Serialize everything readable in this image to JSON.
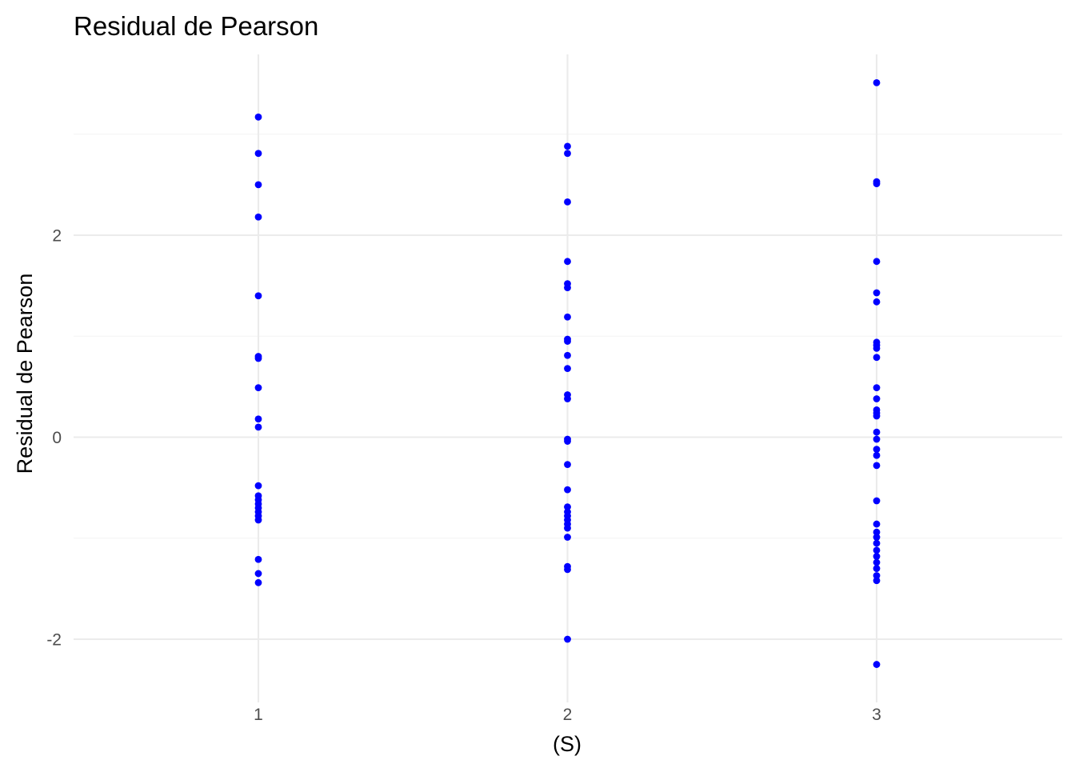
{
  "chart_data": {
    "type": "scatter",
    "title": "Residual de Pearson",
    "xlabel": "(S)",
    "ylabel": "Residual de Pearson",
    "x_ticks": [
      "1",
      "2",
      "3"
    ],
    "y_ticks": [
      "-2",
      "0",
      "2"
    ],
    "y_tick_values": [
      -2,
      0,
      2
    ],
    "xlim": [
      0.4,
      3.6
    ],
    "ylim": [
      -2.55,
      3.75
    ],
    "grid": true,
    "legend": "none",
    "point_color": "#0000ff",
    "points": [
      {
        "x": 1,
        "y": 3.17
      },
      {
        "x": 1,
        "y": 2.81
      },
      {
        "x": 1,
        "y": 2.5
      },
      {
        "x": 1,
        "y": 2.18
      },
      {
        "x": 1,
        "y": 1.4
      },
      {
        "x": 1,
        "y": 0.8
      },
      {
        "x": 1,
        "y": 0.78
      },
      {
        "x": 1,
        "y": 0.49
      },
      {
        "x": 1,
        "y": 0.18
      },
      {
        "x": 1,
        "y": 0.1
      },
      {
        "x": 1,
        "y": -0.48
      },
      {
        "x": 1,
        "y": -0.58
      },
      {
        "x": 1,
        "y": -0.62
      },
      {
        "x": 1,
        "y": -0.66
      },
      {
        "x": 1,
        "y": -0.7
      },
      {
        "x": 1,
        "y": -0.74
      },
      {
        "x": 1,
        "y": -0.78
      },
      {
        "x": 1,
        "y": -0.82
      },
      {
        "x": 1,
        "y": -1.21
      },
      {
        "x": 1,
        "y": -1.35
      },
      {
        "x": 1,
        "y": -1.44
      },
      {
        "x": 2,
        "y": 2.88
      },
      {
        "x": 2,
        "y": 2.81
      },
      {
        "x": 2,
        "y": 2.33
      },
      {
        "x": 2,
        "y": 1.74
      },
      {
        "x": 2,
        "y": 1.52
      },
      {
        "x": 2,
        "y": 1.48
      },
      {
        "x": 2,
        "y": 1.19
      },
      {
        "x": 2,
        "y": 0.97
      },
      {
        "x": 2,
        "y": 0.95
      },
      {
        "x": 2,
        "y": 0.81
      },
      {
        "x": 2,
        "y": 0.68
      },
      {
        "x": 2,
        "y": 0.42
      },
      {
        "x": 2,
        "y": 0.38
      },
      {
        "x": 2,
        "y": -0.02
      },
      {
        "x": 2,
        "y": -0.04
      },
      {
        "x": 2,
        "y": -0.27
      },
      {
        "x": 2,
        "y": -0.52
      },
      {
        "x": 2,
        "y": -0.69
      },
      {
        "x": 2,
        "y": -0.74
      },
      {
        "x": 2,
        "y": -0.78
      },
      {
        "x": 2,
        "y": -0.82
      },
      {
        "x": 2,
        "y": -0.86
      },
      {
        "x": 2,
        "y": -0.9
      },
      {
        "x": 2,
        "y": -0.99
      },
      {
        "x": 2,
        "y": -1.28
      },
      {
        "x": 2,
        "y": -1.31
      },
      {
        "x": 2,
        "y": -2.0
      },
      {
        "x": 3,
        "y": 3.51
      },
      {
        "x": 3,
        "y": 2.53
      },
      {
        "x": 3,
        "y": 2.51
      },
      {
        "x": 3,
        "y": 1.74
      },
      {
        "x": 3,
        "y": 1.43
      },
      {
        "x": 3,
        "y": 1.34
      },
      {
        "x": 3,
        "y": 0.94
      },
      {
        "x": 3,
        "y": 0.91
      },
      {
        "x": 3,
        "y": 0.88
      },
      {
        "x": 3,
        "y": 0.79
      },
      {
        "x": 3,
        "y": 0.49
      },
      {
        "x": 3,
        "y": 0.38
      },
      {
        "x": 3,
        "y": 0.27
      },
      {
        "x": 3,
        "y": 0.24
      },
      {
        "x": 3,
        "y": 0.21
      },
      {
        "x": 3,
        "y": 0.05
      },
      {
        "x": 3,
        "y": -0.02
      },
      {
        "x": 3,
        "y": -0.12
      },
      {
        "x": 3,
        "y": -0.18
      },
      {
        "x": 3,
        "y": -0.28
      },
      {
        "x": 3,
        "y": -0.63
      },
      {
        "x": 3,
        "y": -0.86
      },
      {
        "x": 3,
        "y": -0.94
      },
      {
        "x": 3,
        "y": -0.99
      },
      {
        "x": 3,
        "y": -1.05
      },
      {
        "x": 3,
        "y": -1.12
      },
      {
        "x": 3,
        "y": -1.18
      },
      {
        "x": 3,
        "y": -1.24
      },
      {
        "x": 3,
        "y": -1.3
      },
      {
        "x": 3,
        "y": -1.37
      },
      {
        "x": 3,
        "y": -1.42
      },
      {
        "x": 3,
        "y": -2.25
      }
    ]
  }
}
